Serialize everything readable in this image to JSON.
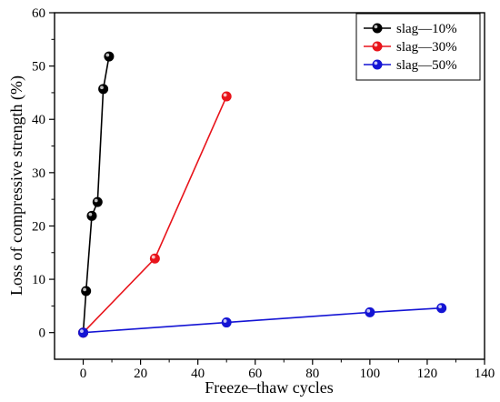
{
  "chart_data": {
    "type": "line",
    "title": "",
    "xlabel": "Freeze–thaw cycles",
    "ylabel": "Loss of compressive strength (%)",
    "xlim": [
      -10,
      140
    ],
    "ylim": [
      -5,
      60
    ],
    "x_ticks": [
      0,
      20,
      40,
      60,
      80,
      100,
      120,
      140
    ],
    "y_ticks": [
      0,
      10,
      20,
      30,
      40,
      50,
      60
    ],
    "grid": false,
    "legend_position": "top-right",
    "series": [
      {
        "name": "slag—10%",
        "color": "#000000",
        "x": [
          0,
          1,
          3,
          5,
          7,
          9
        ],
        "y": [
          0,
          7.8,
          21.9,
          24.5,
          45.7,
          51.8
        ]
      },
      {
        "name": "slag—30%",
        "color": "#e8141b",
        "x": [
          0,
          25,
          50
        ],
        "y": [
          0,
          13.9,
          44.3
        ]
      },
      {
        "name": "slag—50%",
        "color": "#1414d4",
        "x": [
          0,
          50,
          100,
          125
        ],
        "y": [
          0,
          1.9,
          3.8,
          4.6
        ]
      }
    ]
  }
}
